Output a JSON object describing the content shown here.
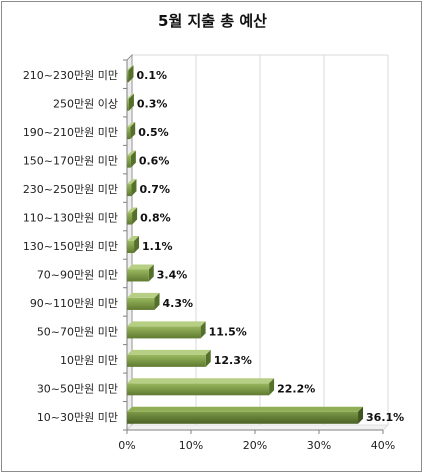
{
  "chart_data": {
    "type": "bar",
    "orientation": "horizontal",
    "title": "5월 지출 총 예산",
    "categories": [
      "210~230만원 미만",
      "250만원 이상",
      "190~210만원 미만",
      "150~170만원 미만",
      "230~250만원 미만",
      "110~130만원 미만",
      "130~150만원 미만",
      "70~90만원 미만",
      "90~110만원 미만",
      "50~70만원 미만",
      "10만원 미만",
      "30~50만원 미만",
      "10~30만원 미만"
    ],
    "values": [
      0.1,
      0.3,
      0.5,
      0.6,
      0.7,
      0.8,
      1.1,
      3.4,
      4.3,
      11.5,
      12.3,
      22.2,
      36.1
    ],
    "value_labels": [
      "0.1%",
      "0.3%",
      "0.5%",
      "0.6%",
      "0.7%",
      "0.8%",
      "1.1%",
      "3.4%",
      "4.3%",
      "11.5%",
      "12.3%",
      "22.2%",
      "36.1%"
    ],
    "x_ticks": [
      "0%",
      "10%",
      "20%",
      "30%",
      "40%"
    ],
    "xlim": [
      0,
      40
    ],
    "xlabel": "",
    "ylabel": "",
    "grid": true,
    "colors": {
      "bar_light": "#9ab85f",
      "bar_dark": "#5f7a30",
      "bar_last_light": "#7c9a46",
      "bar_last_dark": "#4a6125",
      "grid": "#d9d9d9",
      "axis": "#808080"
    }
  }
}
